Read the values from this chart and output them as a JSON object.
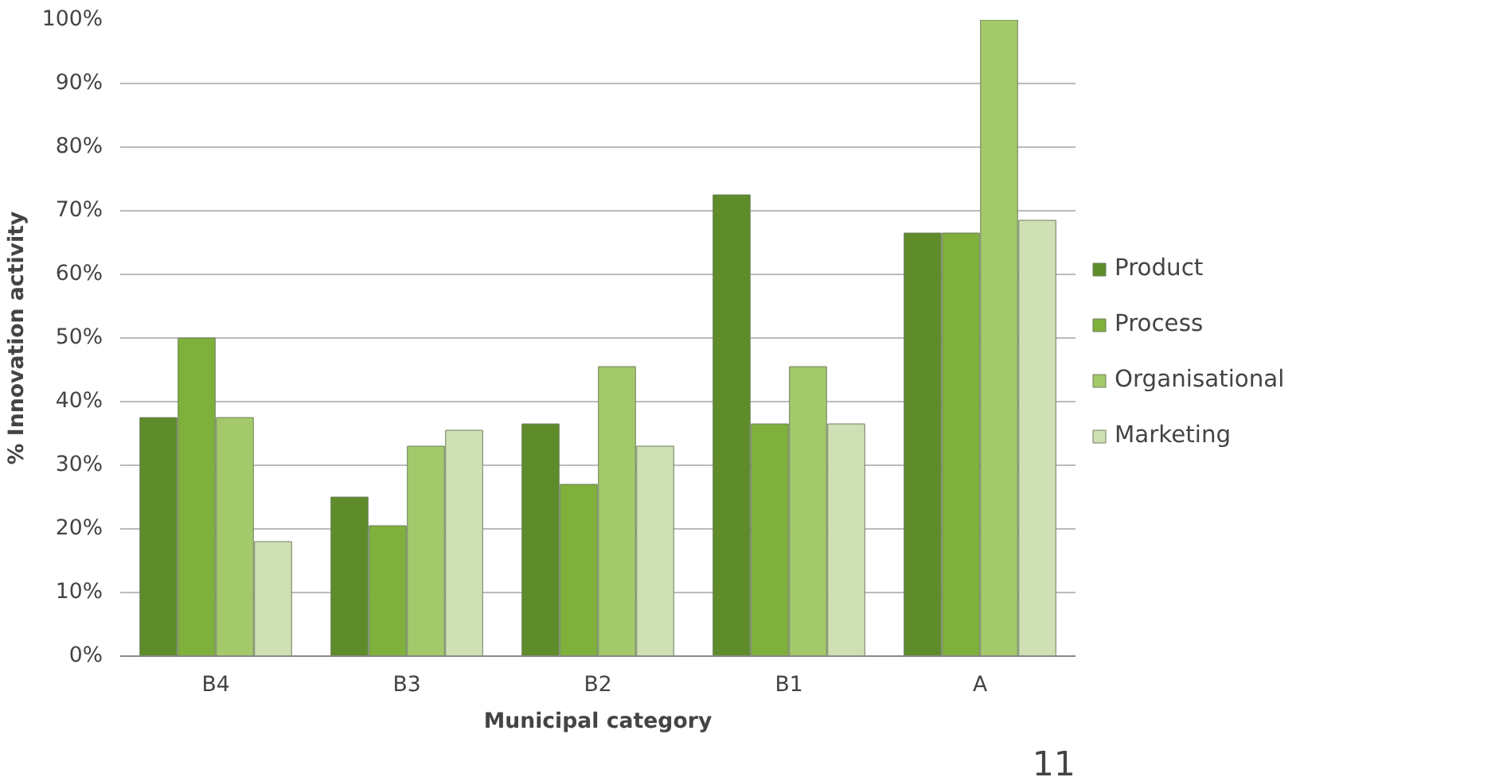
{
  "chart_data": {
    "type": "bar",
    "xlabel": "Municipal category",
    "ylabel": "% Innovation activity",
    "categories": [
      "B4",
      "B3",
      "B2",
      "B1",
      "A"
    ],
    "series": [
      {
        "name": "Product",
        "color": "#5e8c2a",
        "values": [
          37.5,
          25,
          36.5,
          72.5,
          66.5
        ]
      },
      {
        "name": "Process",
        "color": "#7fb03c",
        "values": [
          50,
          20.5,
          27,
          36.5,
          66.5
        ]
      },
      {
        "name": "Organisational",
        "color": "#a3c96b",
        "values": [
          37.5,
          33,
          45.5,
          45.5,
          100
        ]
      },
      {
        "name": "Marketing",
        "color": "#cfe0b4",
        "values": [
          18,
          35.5,
          33,
          36.5,
          68.5
        ]
      }
    ],
    "ylim": [
      0,
      100
    ],
    "yticks": [
      {
        "value": 0,
        "label": "0%"
      },
      {
        "value": 10,
        "label": "10%"
      },
      {
        "value": 20,
        "label": "20%"
      },
      {
        "value": 30,
        "label": "30%"
      },
      {
        "value": 40,
        "label": "40%"
      },
      {
        "value": 50,
        "label": "50%"
      },
      {
        "value": 60,
        "label": "60%"
      },
      {
        "value": 70,
        "label": "70%"
      },
      {
        "value": 80,
        "label": "80%"
      },
      {
        "value": 90,
        "label": "90%"
      },
      {
        "value": 100,
        "label": "100%"
      }
    ],
    "grid": "y",
    "legend": "right",
    "annotations": [
      "11"
    ]
  }
}
